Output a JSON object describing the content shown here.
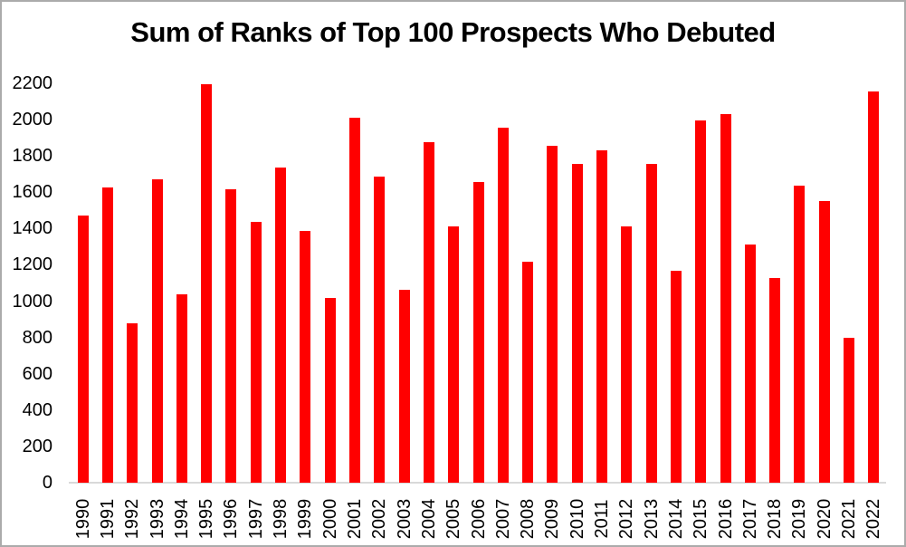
{
  "page": {
    "background": "#FFFFFF",
    "border_color": "#ABABAB"
  },
  "chart_data": {
    "type": "bar",
    "title": "Sum of Ranks of Top 100 Prospects Who Debuted",
    "categories": [
      "1990",
      "1991",
      "1992",
      "1993",
      "1994",
      "1995",
      "1996",
      "1997",
      "1998",
      "1999",
      "2000",
      "2001",
      "2002",
      "2003",
      "2004",
      "2005",
      "2006",
      "2007",
      "2008",
      "2009",
      "2010",
      "2011",
      "2012",
      "2013",
      "2014",
      "2015",
      "2016",
      "2017",
      "2018",
      "2019",
      "2020",
      "2021",
      "2022"
    ],
    "values": [
      1470,
      1625,
      880,
      1670,
      1040,
      2195,
      1615,
      1435,
      1735,
      1385,
      1020,
      2010,
      1685,
      1065,
      1875,
      1410,
      1655,
      1955,
      1215,
      1855,
      1755,
      1830,
      1410,
      1755,
      1165,
      1995,
      2030,
      1310,
      1125,
      1635,
      1550,
      800,
      2155
    ],
    "xlabel": "",
    "ylabel": "",
    "ylim": [
      0,
      2200
    ],
    "ytick_step": 200,
    "yticks": [
      0,
      200,
      400,
      600,
      800,
      1000,
      1200,
      1400,
      1600,
      1800,
      2000,
      2200
    ],
    "grid": false,
    "legend": null,
    "x_labels_rotated_degrees": 90,
    "bar_color": "#FF0000",
    "axis_line_color": "#D9D9D9",
    "title_color": "#000000",
    "tick_label_color": "#000000"
  }
}
